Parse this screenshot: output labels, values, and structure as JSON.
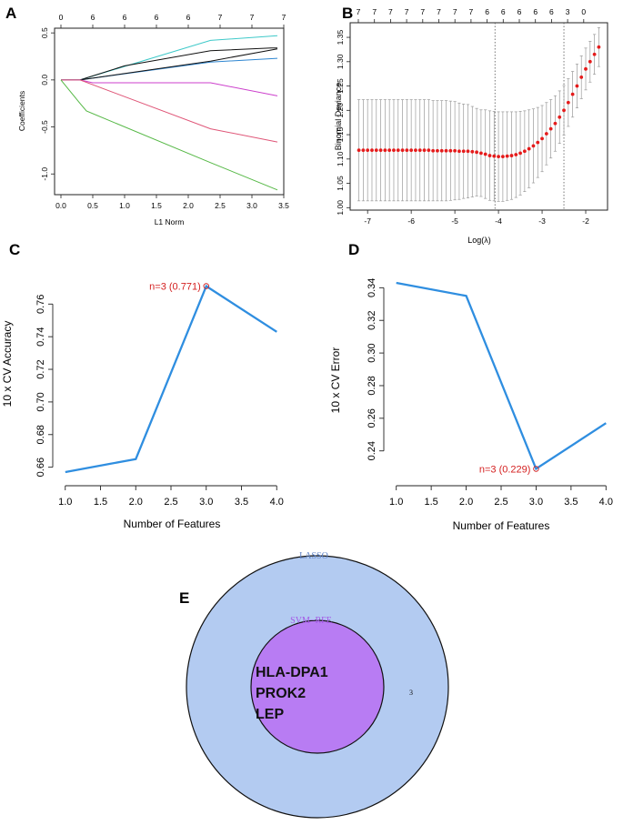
{
  "panel_labels": [
    "A",
    "B",
    "C",
    "D",
    "E"
  ],
  "chart_data": [
    {
      "id": "A",
      "type": "line",
      "xlabel": "L1 Norm",
      "ylabel": "Coefficients",
      "xlim": [
        -0.1,
        3.5
      ],
      "ylim": [
        -1.22,
        0.55
      ],
      "x_ticks": [
        "0.0",
        "0.5",
        "1.0",
        "1.5",
        "2.0",
        "2.5",
        "3.0",
        "3.5"
      ],
      "y_ticks": [
        "0.5",
        "0.0",
        "-0.5",
        "-1.0"
      ],
      "top_axis_x": [
        0,
        0.5,
        1.0,
        1.5,
        2.0,
        2.5,
        3.0,
        3.5
      ],
      "top_axis_labels": [
        "0",
        "6",
        "6",
        "6",
        "6",
        "7",
        "7",
        "7"
      ],
      "series": [
        {
          "name": "cyan",
          "color": "#3ec9c9",
          "x": [
            0,
            0.3,
            2.35,
            3.4
          ],
          "y": [
            0,
            0,
            0.42,
            0.47
          ]
        },
        {
          "name": "black",
          "color": "#111111",
          "x": [
            0,
            0.3,
            1.0,
            2.35,
            3.3,
            3.4,
            3.4
          ],
          "y": [
            0,
            0,
            0.15,
            0.31,
            0.34,
            0.34,
            0.34
          ]
        },
        {
          "name": "blue",
          "color": "#2e86d1",
          "x": [
            0,
            0.3,
            2.35,
            3.4
          ],
          "y": [
            0,
            0,
            0.19,
            0.23
          ]
        },
        {
          "name": "black-2",
          "color": "#111111",
          "x": [
            0.3,
            2.35,
            3.4
          ],
          "y": [
            0,
            0.2,
            0.33
          ]
        },
        {
          "name": "magenta",
          "color": "#cc3fcc",
          "x": [
            0,
            0.3,
            0.5,
            2.35,
            3.4
          ],
          "y": [
            0,
            0,
            -0.03,
            -0.03,
            -0.17
          ]
        },
        {
          "name": "red",
          "color": "#df5577",
          "x": [
            0,
            0.3,
            2.35,
            3.4
          ],
          "y": [
            0,
            0,
            -0.52,
            -0.66
          ]
        },
        {
          "name": "green",
          "color": "#55b845",
          "x": [
            0,
            0.3,
            0.4,
            2.35,
            3.4
          ],
          "y": [
            0,
            -0.25,
            -0.33,
            -0.88,
            -1.17
          ]
        }
      ]
    },
    {
      "id": "B",
      "type": "scatter",
      "xlabel": "Log(λ)",
      "ylabel": "Binomial Deviance",
      "xlim": [
        -7.4,
        -1.5
      ],
      "ylim": [
        0.995,
        1.38
      ],
      "x_ticks": [
        "-7",
        "-6",
        "-5",
        "-4",
        "-3",
        "-2"
      ],
      "y_ticks": [
        "1.00",
        "1.05",
        "1.10",
        "1.15",
        "1.20",
        "1.25",
        "1.30",
        "1.35"
      ],
      "top_axis_labels": [
        "7",
        "7",
        "7",
        "7",
        "7",
        "7",
        "7",
        "7",
        "6",
        "6",
        "6",
        "6",
        "6",
        "3",
        "0"
      ],
      "vlines": [
        -4.08,
        -2.5
      ],
      "x_start": -7.2,
      "x_step": 0.1,
      "mean": [
        1.118,
        1.118,
        1.118,
        1.118,
        1.118,
        1.118,
        1.118,
        1.118,
        1.118,
        1.118,
        1.118,
        1.118,
        1.118,
        1.118,
        1.118,
        1.118,
        1.118,
        1.117,
        1.117,
        1.117,
        1.117,
        1.117,
        1.117,
        1.116,
        1.116,
        1.116,
        1.115,
        1.114,
        1.112,
        1.11,
        1.107,
        1.106,
        1.105,
        1.105,
        1.106,
        1.107,
        1.109,
        1.112,
        1.116,
        1.121,
        1.127,
        1.134,
        1.142,
        1.152,
        1.162,
        1.173,
        1.186,
        1.2,
        1.216,
        1.233,
        1.25,
        1.268,
        1.285,
        1.3,
        1.315,
        1.33
      ],
      "err": [
        0.104,
        0.104,
        0.104,
        0.104,
        0.104,
        0.104,
        0.104,
        0.104,
        0.104,
        0.104,
        0.104,
        0.104,
        0.104,
        0.104,
        0.104,
        0.104,
        0.104,
        0.103,
        0.103,
        0.103,
        0.103,
        0.102,
        0.101,
        0.099,
        0.097,
        0.096,
        0.093,
        0.09,
        0.089,
        0.091,
        0.092,
        0.092,
        0.092,
        0.092,
        0.091,
        0.09,
        0.088,
        0.086,
        0.083,
        0.08,
        0.076,
        0.072,
        0.068,
        0.064,
        0.06,
        0.057,
        0.054,
        0.051,
        0.049,
        0.047,
        0.045,
        0.044,
        0.043,
        0.042,
        0.041,
        0.04
      ]
    },
    {
      "id": "C",
      "type": "line",
      "xlabel": "Number of Features",
      "ylabel": "10 x CV Accuracy",
      "x": [
        1,
        2,
        3,
        4
      ],
      "y": [
        0.657,
        0.665,
        0.771,
        0.743
      ],
      "xlim": [
        0.9,
        4.1
      ],
      "ylim": [
        0.652,
        0.778
      ],
      "x_ticks": [
        "1.0",
        "1.5",
        "2.0",
        "2.5",
        "3.0",
        "3.5",
        "4.0"
      ],
      "y_ticks": [
        "0.66",
        "0.68",
        "0.70",
        "0.72",
        "0.74",
        "0.76"
      ],
      "annotation": {
        "x": 3,
        "y": 0.771,
        "text": "n=3 (0.771)"
      },
      "line_color": "#2f8ee0",
      "annotation_color": "#d42020"
    },
    {
      "id": "D",
      "type": "line",
      "xlabel": "Number of Features",
      "ylabel": "10 x CV Error",
      "x": [
        1,
        2,
        3,
        4
      ],
      "y": [
        0.343,
        0.335,
        0.229,
        0.257
      ],
      "xlim": [
        0.9,
        4.1
      ],
      "ylim": [
        0.222,
        0.348
      ],
      "x_ticks": [
        "1.0",
        "1.5",
        "2.0",
        "2.5",
        "3.0",
        "3.5",
        "4.0"
      ],
      "y_ticks": [
        "0.24",
        "0.26",
        "0.28",
        "0.30",
        "0.32",
        "0.34"
      ],
      "annotation": {
        "x": 3,
        "y": 0.229,
        "text": "n=3 (0.229)"
      },
      "line_color": "#2f8ee0",
      "annotation_color": "#d42020"
    }
  ],
  "venn": {
    "outer_label": "LASSO",
    "inner_label": "SVM−RFE",
    "outer_only_count": "3",
    "genes": [
      "HLA-DPA1",
      "PROK2",
      "LEP"
    ],
    "outer_fill": "#b3cbf1",
    "inner_fill": "#b87cf3",
    "outer_label_color": "#5b7fc4",
    "inner_label_color": "#a457e6"
  }
}
